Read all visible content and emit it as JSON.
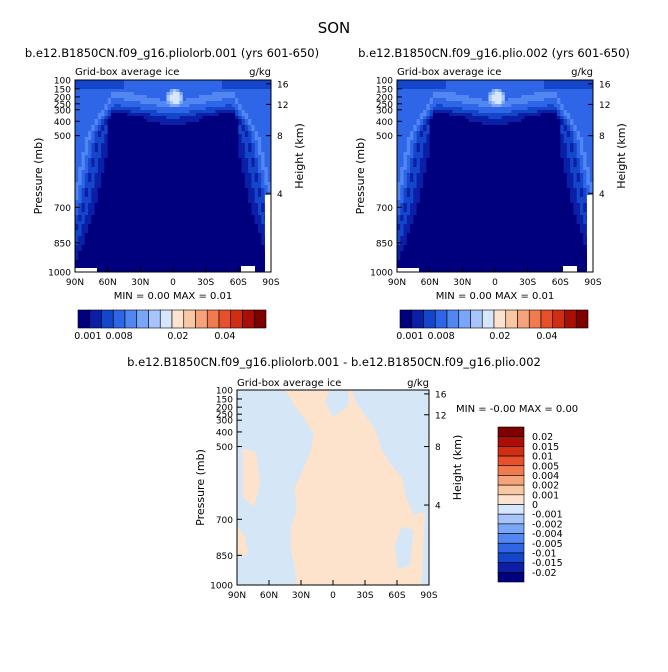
{
  "figure": {
    "main_title": "SON"
  },
  "colors": {
    "cool": [
      "#00007e",
      "#0a1fa6",
      "#1446cc",
      "#2f66e8",
      "#5287f2",
      "#7aa6f7",
      "#a7c5fa",
      "#d6e6fc"
    ],
    "warm": [
      "#fde3cf",
      "#f9c7a3",
      "#f6a27a",
      "#f07b4e",
      "#e6502a",
      "#d02e12",
      "#a90f05",
      "#7e0000"
    ],
    "diff_blue": "#d5e6f7",
    "diff_orange": "#fde3cc"
  },
  "chart_data": [
    {
      "id": "left",
      "type": "heatmap",
      "title": "b.e12.B1850CN.f09_g16.pliolorb.001 (yrs 601-650)",
      "subtitle_left": "Grid-box average ice",
      "subtitle_right": "g/kg",
      "ylabel": "Pressure (mb)",
      "ylabel_right": "Height (km)",
      "xticks": [
        "90N",
        "60N",
        "30N",
        "0",
        "30S",
        "60S",
        "90S"
      ],
      "yticks": [
        100,
        150,
        200,
        250,
        300,
        400,
        500,
        700,
        850,
        1000
      ],
      "yticks_right": [
        16,
        12,
        8,
        4
      ],
      "ylim": [
        1000,
        100
      ],
      "xlim": [
        90,
        -90
      ],
      "min_max_text": "MIN =   0.00   MAX =   0.01",
      "colorbar_labels": [
        "0.001",
        "0.008",
        "0.02",
        "0.04"
      ]
    },
    {
      "id": "right",
      "type": "heatmap",
      "title": "b.e12.B1850CN.f09_g16.plio.002 (yrs 601-650)",
      "subtitle_left": "Grid-box average ice",
      "subtitle_right": "g/kg",
      "ylabel": "Pressure (mb)",
      "ylabel_right": "Height (km)",
      "xticks": [
        "90N",
        "60N",
        "30N",
        "0",
        "30S",
        "60S",
        "90S"
      ],
      "yticks": [
        100,
        150,
        200,
        250,
        300,
        400,
        500,
        700,
        850,
        1000
      ],
      "yticks_right": [
        16,
        12,
        8,
        4
      ],
      "ylim": [
        1000,
        100
      ],
      "xlim": [
        90,
        -90
      ],
      "min_max_text": "MIN =   0.00   MAX =   0.01",
      "colorbar_labels": [
        "0.001",
        "0.008",
        "0.02",
        "0.04"
      ]
    },
    {
      "id": "diff",
      "type": "heatmap",
      "title": "b.e12.B1850CN.f09_g16.pliolorb.001 - b.e12.B1850CN.f09_g16.plio.002",
      "subtitle_left": "Grid-box average ice",
      "subtitle_right": "g/kg",
      "ylabel": "Pressure (mb)",
      "ylabel_right": "Height (km)",
      "xticks": [
        "90N",
        "60N",
        "30N",
        "0",
        "30S",
        "60S",
        "90S"
      ],
      "yticks": [
        100,
        150,
        200,
        250,
        300,
        400,
        500,
        700,
        850,
        1000
      ],
      "yticks_right": [
        16,
        12,
        8,
        4
      ],
      "ylim": [
        1000,
        100
      ],
      "xlim": [
        90,
        -90
      ],
      "min_max_text": "MIN =  -0.00   MAX =   0.00",
      "colorbar_labels": [
        "0.02",
        "0.015",
        "0.01",
        "0.005",
        "0.004",
        "0.002",
        "0.001",
        "0",
        "-0.001",
        "-0.002",
        "-0.004",
        "-0.005",
        "-0.01",
        "-0.015",
        "-0.02"
      ]
    }
  ]
}
